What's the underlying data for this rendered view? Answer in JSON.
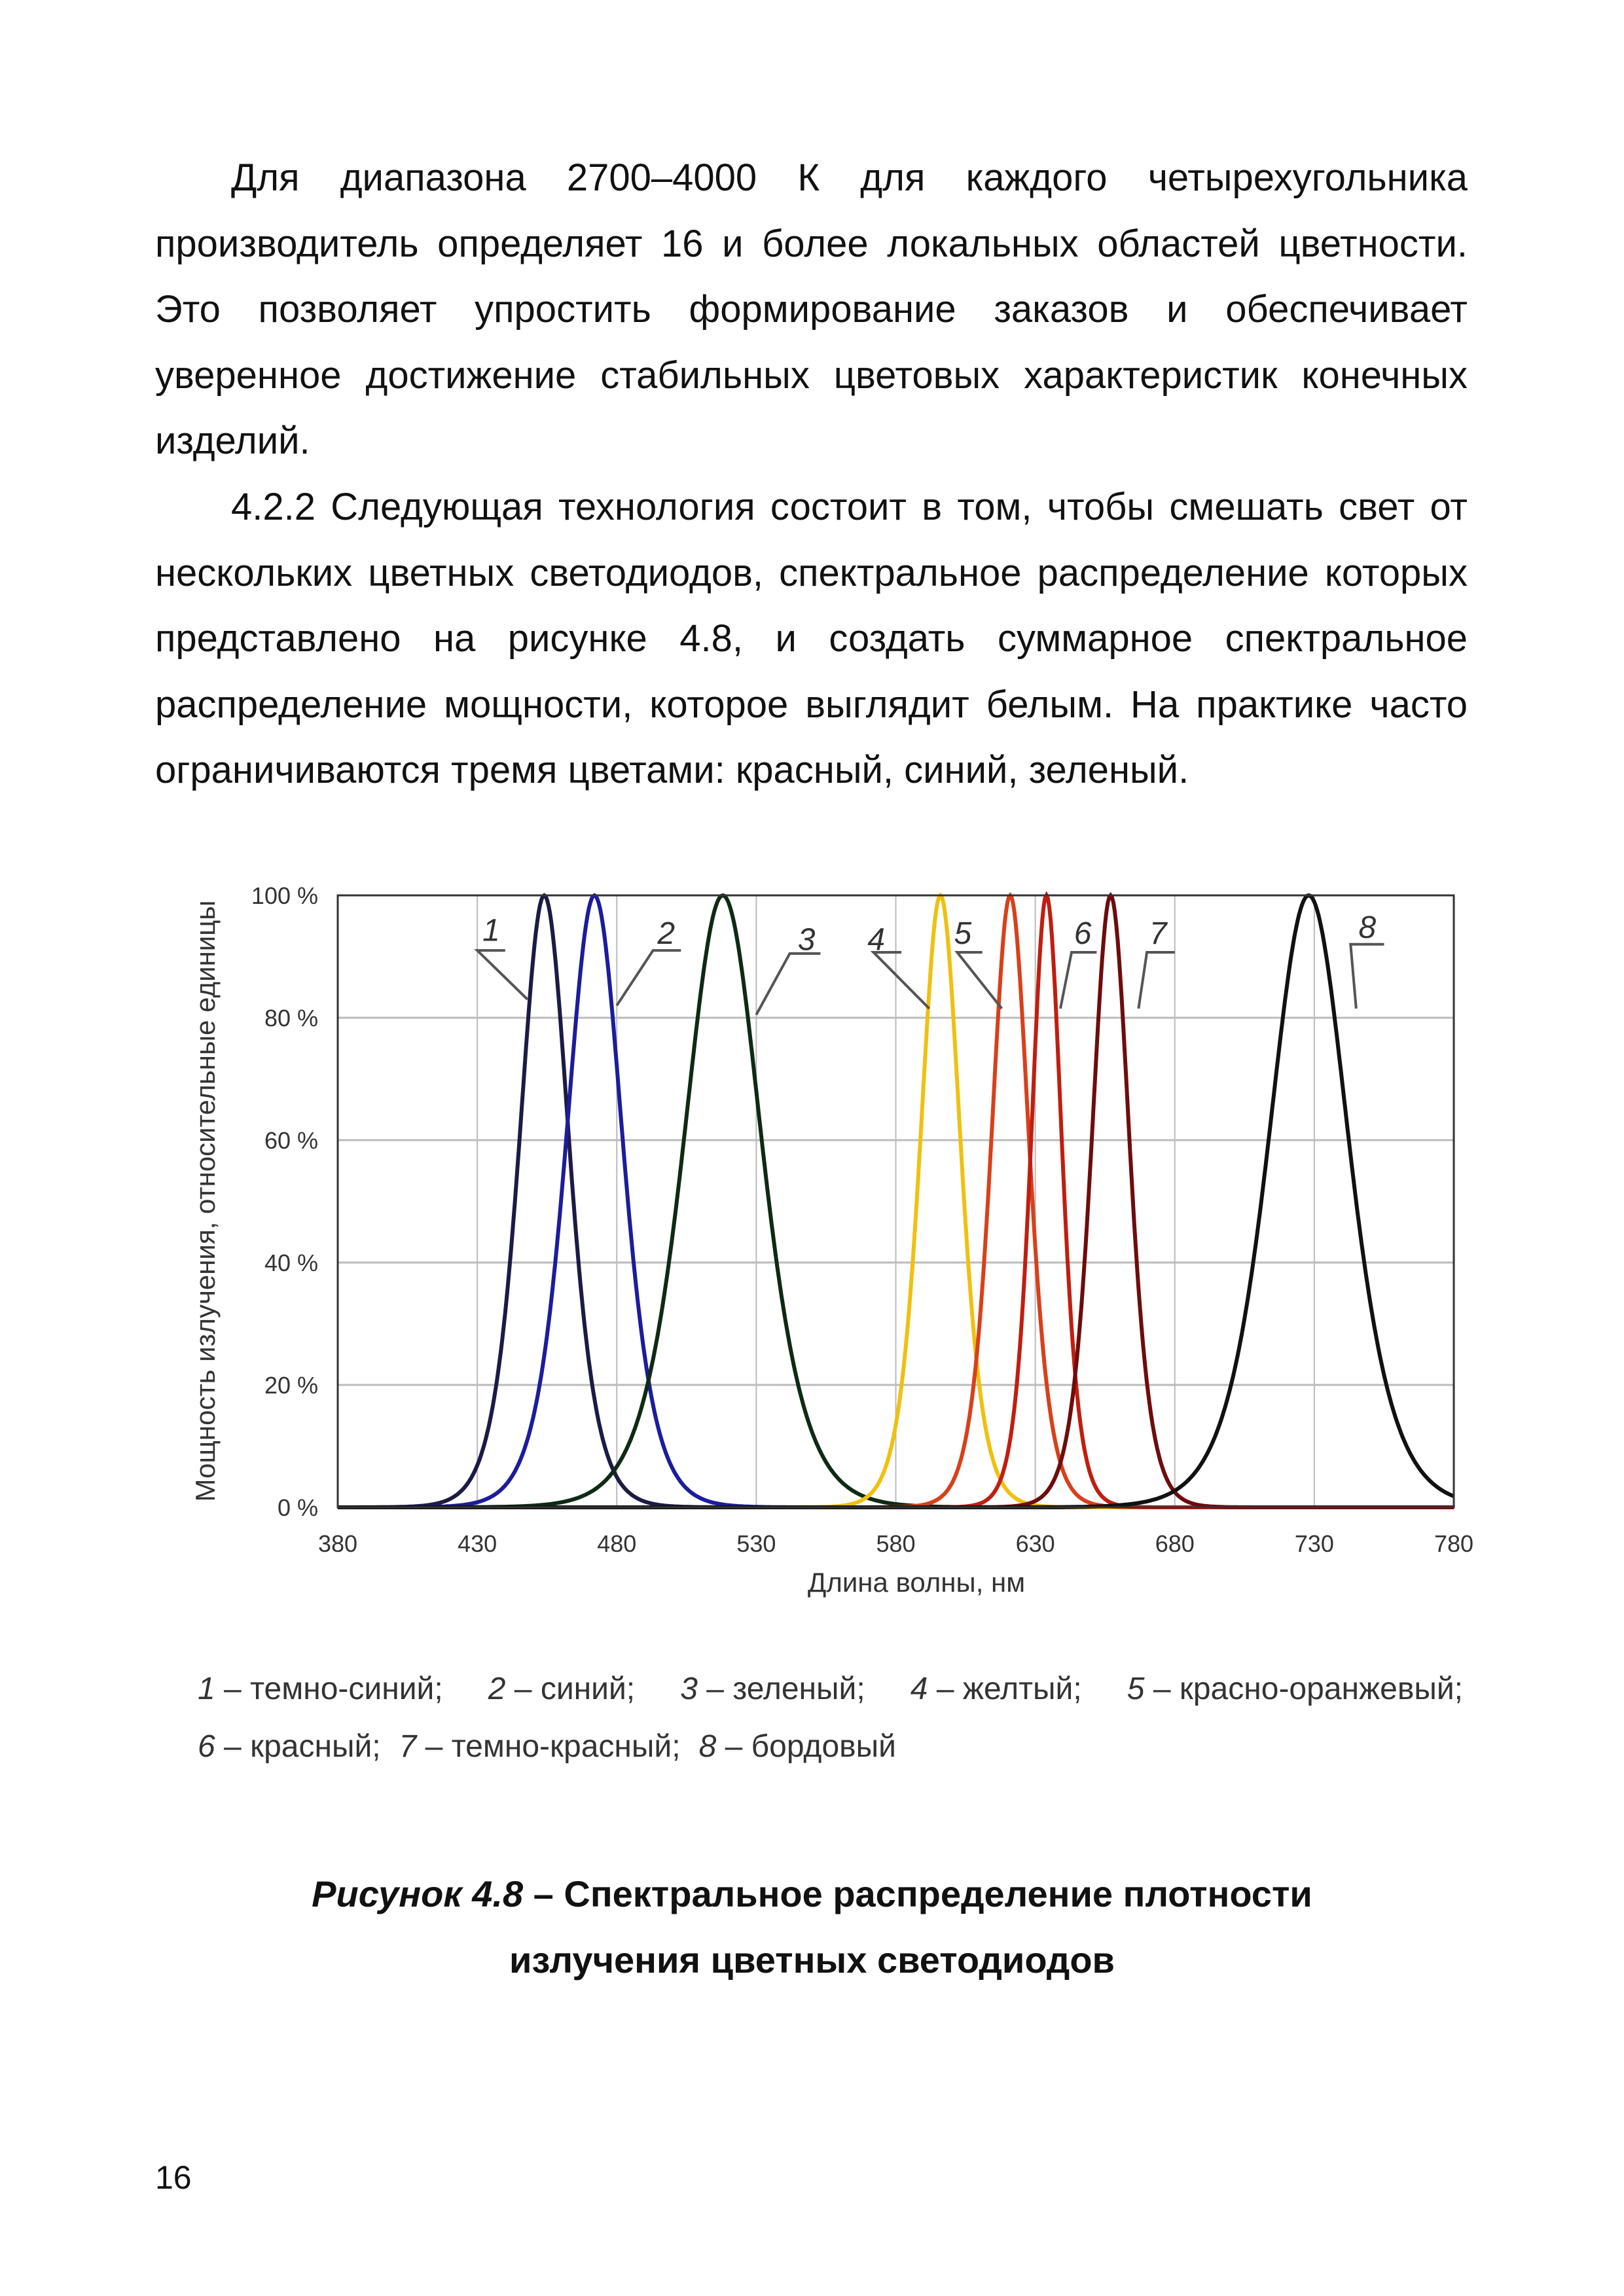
{
  "paragraphs": [
    {
      "lines": [
        "Для диапазона 2700–4000 К для каждого четырехугольника",
        "производитель определяет 16 и более локальных областей цветности.",
        "Это позволяет упростить формирование заказов и обеспечивает",
        "уверенное достижение стабильных цветовых характеристик конечных",
        "изделий."
      ]
    },
    {
      "lines": [
        "4.2.2 Следующая технология состоит в том, чтобы смешать свет от",
        "нескольких цветных светодиодов, спектральное распределение которых",
        "представлено на рисунке 4.8, и создать суммарное спектральное",
        "распределение мощности, которое выглядит белым. На практике часто",
        "ограничиваются тремя цветами: красный, синий, зеленый."
      ]
    }
  ],
  "chart_data": {
    "type": "line",
    "title": "",
    "xlabel": "Длина волны, нм",
    "ylabel": "Мощность излучения, относительные единицы",
    "xlim": [
      380,
      780
    ],
    "ylim": [
      0,
      100
    ],
    "x_ticks": [
      "380",
      "430",
      "480",
      "530",
      "580",
      "630",
      "680",
      "730",
      "780"
    ],
    "y_ticks": [
      "0 %",
      "20 %",
      "40 %",
      "60 %",
      "80 %",
      "100 %"
    ],
    "grid": true,
    "series": [
      {
        "name": "1",
        "peak_nm": 454,
        "fwhm_nm": 21,
        "peak_percent": 100,
        "color": "#1b1b45"
      },
      {
        "name": "2",
        "peak_nm": 472,
        "fwhm_nm": 24,
        "peak_percent": 100,
        "color": "#1c1c9c"
      },
      {
        "name": "3",
        "peak_nm": 518,
        "fwhm_nm": 33,
        "peak_percent": 100,
        "color": "#0f2a14"
      },
      {
        "name": "4",
        "peak_nm": 596,
        "fwhm_nm": 17,
        "peak_percent": 100,
        "color": "#f0c010"
      },
      {
        "name": "5",
        "peak_nm": 621,
        "fwhm_nm": 16,
        "peak_percent": 100,
        "color": "#d8401a"
      },
      {
        "name": "6",
        "peak_nm": 634,
        "fwhm_nm": 13,
        "peak_percent": 100,
        "color": "#c01e10"
      },
      {
        "name": "7",
        "peak_nm": 657,
        "fwhm_nm": 16,
        "peak_percent": 100,
        "color": "#6e0c0c"
      },
      {
        "name": "8",
        "peak_nm": 728,
        "fwhm_nm": 34,
        "peak_percent": 100,
        "color": "#111111"
      }
    ]
  },
  "legend": {
    "row1": [
      {
        "num": "1",
        "name": " – темно-синий;"
      },
      {
        "num": "2",
        "name": " – синий;"
      },
      {
        "num": "3",
        "name": " – зеленый;"
      },
      {
        "num": "4",
        "name": " – желтый;"
      },
      {
        "num": "5",
        "name": " – красно-оранжевый;"
      }
    ],
    "row2": [
      {
        "num": "6",
        "name": " – красный;"
      },
      {
        "num": "7",
        "name": " – темно-красный;"
      },
      {
        "num": "8",
        "name": " – бордовый"
      }
    ]
  },
  "caption": {
    "label": "Рисунок 4.8",
    "line1": " – Спектральное распределение плотности",
    "line2": "излучения цветных светодиодов"
  },
  "page_number": "16"
}
